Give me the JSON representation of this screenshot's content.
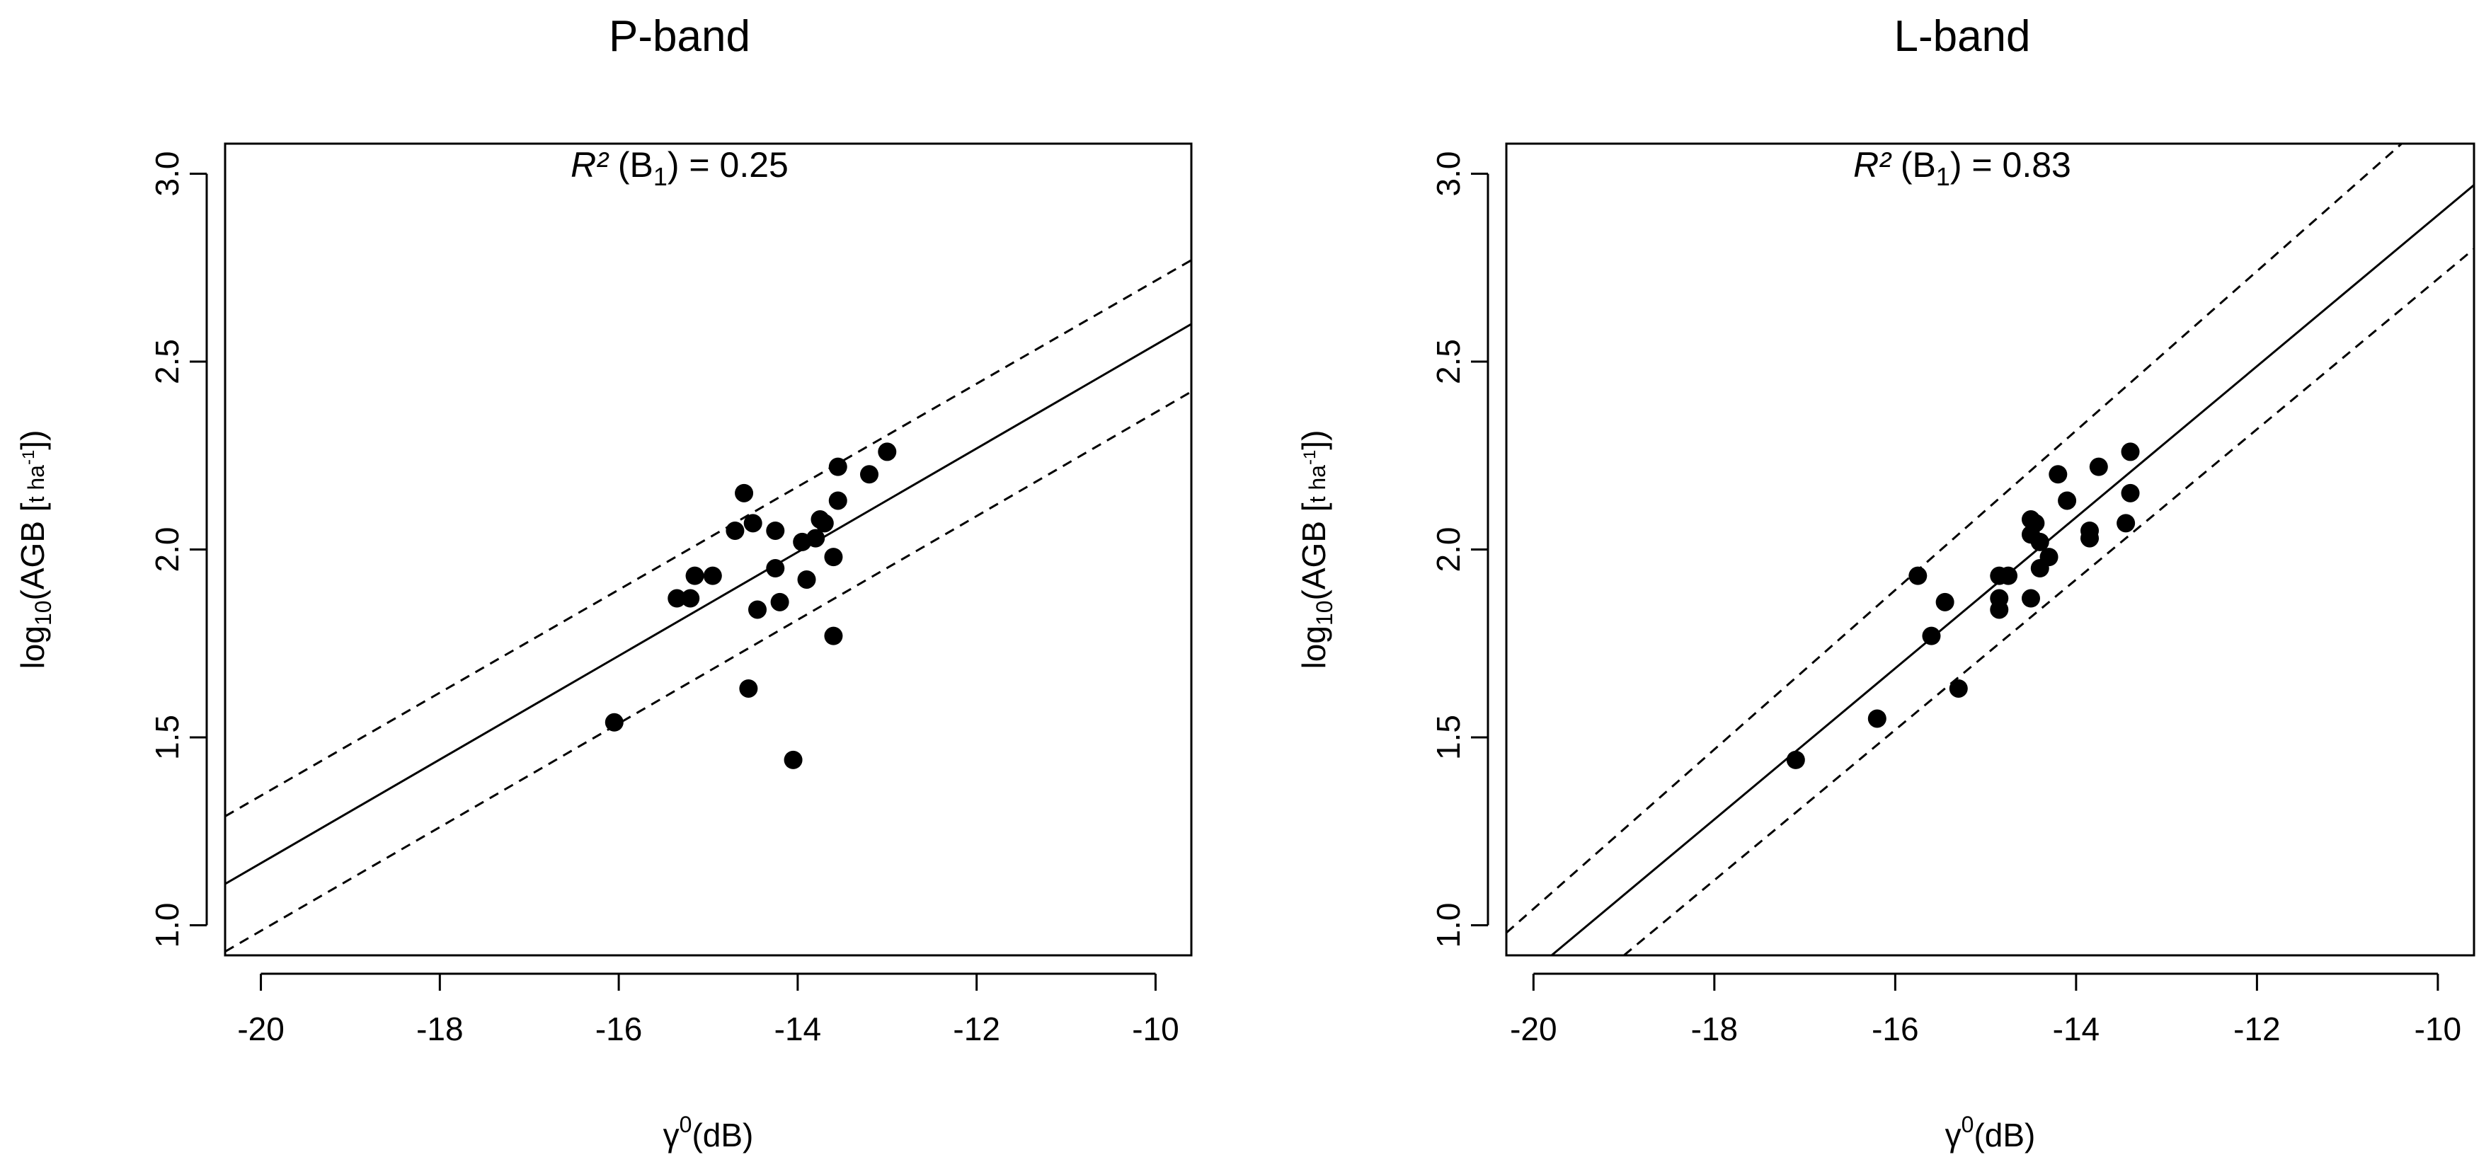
{
  "chart_data": [
    {
      "type": "scatter",
      "title": "P-band",
      "xlabel": "γ0(dB)",
      "ylabel": "log10(AGB [t ha-1])",
      "xlim": [
        -20.4,
        -9.6
      ],
      "ylim": [
        0.92,
        3.08
      ],
      "xticks": [
        "-20",
        "-18",
        "-16",
        "-14",
        "-12",
        "-10"
      ],
      "yticks": [
        "1.0",
        "1.5",
        "2.0",
        "2.5",
        "3.0"
      ],
      "annotation": {
        "r2": "R²",
        "term": "(B",
        "sub": "1",
        "rest": ") = 0.25"
      },
      "fit_line": {
        "x": [
          -20.4,
          -9.6
        ],
        "y": [
          1.11,
          2.6
        ]
      },
      "interval_upper": {
        "x": [
          -20.4,
          -9.6
        ],
        "y": [
          1.29,
          2.77
        ]
      },
      "interval_lower": {
        "x": [
          -20.4,
          -9.6
        ],
        "y": [
          0.93,
          2.42
        ]
      },
      "points": {
        "x": [
          -16.05,
          -15.35,
          -15.2,
          -15.15,
          -14.95,
          -14.7,
          -14.6,
          -14.55,
          -14.5,
          -14.45,
          -14.25,
          -14.25,
          -14.2,
          -14.05,
          -13.95,
          -13.9,
          -13.8,
          -13.75,
          -13.7,
          -13.6,
          -13.55,
          -13.55,
          -13.6,
          -13.2,
          -13.0
        ],
        "y": [
          1.54,
          1.87,
          1.87,
          1.93,
          1.93,
          2.05,
          2.15,
          1.63,
          2.07,
          1.84,
          1.95,
          2.05,
          1.86,
          1.44,
          2.02,
          1.92,
          2.03,
          2.08,
          2.07,
          1.98,
          2.13,
          2.22,
          1.77,
          2.2,
          2.26
        ]
      }
    },
    {
      "type": "scatter",
      "title": "L-band",
      "xlabel": "γ0(dB)",
      "ylabel": "log10(AGB [t ha-1])",
      "xlim": [
        -20.3,
        -9.6
      ],
      "ylim": [
        0.92,
        3.08
      ],
      "xticks": [
        "-20",
        "-18",
        "-16",
        "-14",
        "-12",
        "-10"
      ],
      "yticks": [
        "1.0",
        "1.5",
        "2.0",
        "2.5",
        "3.0"
      ],
      "annotation": {
        "r2": "R²",
        "term": "(B",
        "sub": "1",
        "rest": ") = 0.83"
      },
      "fit_line": {
        "x": [
          -19.8,
          -9.6
        ],
        "y": [
          0.92,
          2.97
        ]
      },
      "interval_upper": {
        "x": [
          -20.3,
          -10.4
        ],
        "y": [
          0.98,
          3.08
        ]
      },
      "interval_lower": {
        "x": [
          -19.0,
          -9.6
        ],
        "y": [
          0.92,
          2.8
        ]
      },
      "points": {
        "x": [
          -17.1,
          -16.2,
          -15.75,
          -15.6,
          -15.45,
          -15.3,
          -14.85,
          -14.85,
          -14.85,
          -14.75,
          -14.5,
          -14.5,
          -14.5,
          -14.45,
          -14.4,
          -14.4,
          -14.3,
          -14.2,
          -14.1,
          -13.85,
          -13.85,
          -13.75,
          -13.45,
          -13.4,
          -13.4
        ],
        "y": [
          1.44,
          1.55,
          1.93,
          1.77,
          1.86,
          1.63,
          1.93,
          1.87,
          1.84,
          1.93,
          2.08,
          2.04,
          1.87,
          2.07,
          1.95,
          2.02,
          1.98,
          2.2,
          2.13,
          2.05,
          2.03,
          2.22,
          2.07,
          2.15,
          2.26
        ]
      }
    }
  ]
}
